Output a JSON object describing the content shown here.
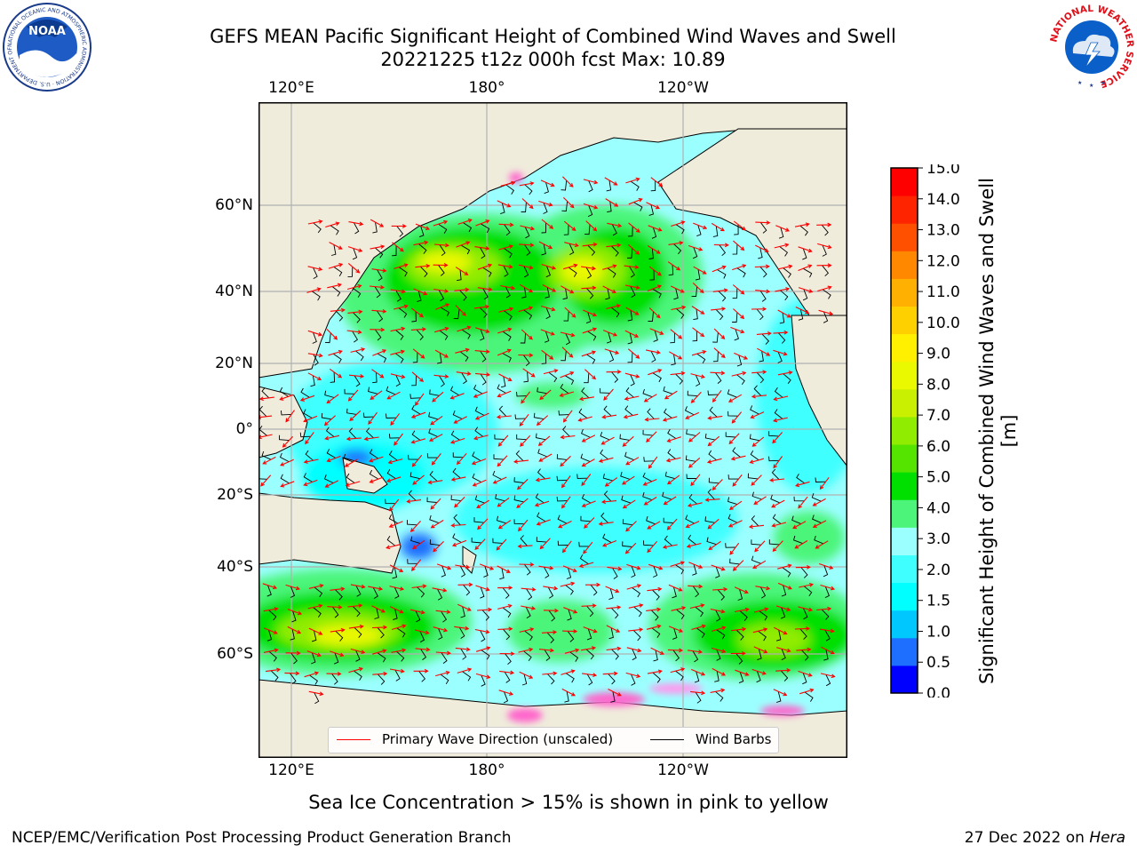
{
  "header": {
    "title_line1": "GEFS MEAN Pacific Significant Height of Combined Wind Waves and Swell",
    "title_line2": "20221225 t12z 000h fcst   Max: 10.89",
    "noaa_logo_text": "NOAA",
    "noaa_ring_text": "NATIONAL OCEANIC AND ATMOSPHERIC ADMINISTRATION · U.S. DEPARTMENT OF COMMERCE",
    "nws_ring_text": "NATIONAL WEATHER SERVICE"
  },
  "map": {
    "top_lon_labels": [
      "120°E",
      "180°",
      "120°W"
    ],
    "bottom_lon_labels": [
      "120°E",
      "180°",
      "120°W"
    ],
    "lat_labels": [
      "60°N",
      "40°N",
      "20°N",
      "0°",
      "20°S",
      "40°S",
      "60°S"
    ],
    "colors": {
      "land": "#efecdc",
      "gridline": "#b0b0b0",
      "wave_direction": "#ff0000",
      "wind_barb": "#000000"
    }
  },
  "colorbar": {
    "label": "Significant Height of Combined Wind Waves and Swell [m]",
    "ticks": [
      "0.0",
      "0.5",
      "1.0",
      "1.5",
      "2.0",
      "3.0",
      "4.0",
      "5.0",
      "6.0",
      "7.0",
      "8.0",
      "9.0",
      "10.0",
      "11.0",
      "12.0",
      "13.0",
      "14.0",
      "15.0"
    ],
    "colors": [
      "#0000ff",
      "#1e6eff",
      "#00c8ff",
      "#00ffff",
      "#40ffff",
      "#9cffff",
      "#4cf57a",
      "#00e000",
      "#55e400",
      "#90ec00",
      "#c8f000",
      "#eaf800",
      "#fff000",
      "#ffd000",
      "#ffb000",
      "#ff8800",
      "#ff5000",
      "#ff2400",
      "#ff0000"
    ]
  },
  "legend": {
    "wave_label": "Primary Wave Direction (unscaled)",
    "barb_label": "Wind Barbs"
  },
  "footnote": "Sea Ice Concentration > 15% is shown in pink to yellow",
  "footer": {
    "left": "NCEP/EMC/Verification Post Processing Product Generation Branch",
    "right_date": "27 Dec 2022 on ",
    "right_host": "Hera"
  }
}
